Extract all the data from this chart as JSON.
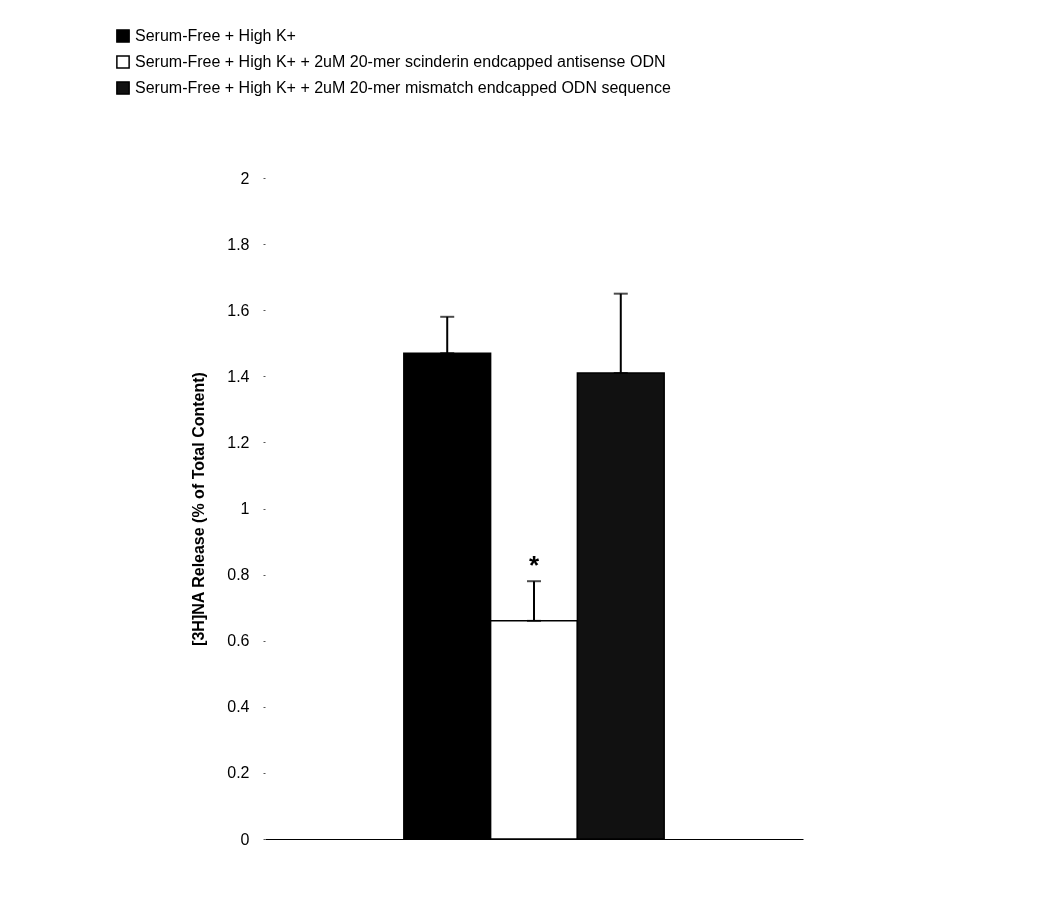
{
  "chart_data": {
    "type": "bar",
    "ylabel": "[3H]NA Release (% of Total Content)",
    "categories": [
      null
    ],
    "series": [
      {
        "name": "Serum-Free + High K+",
        "color": "#000000",
        "values": [
          1.47
        ],
        "errors": [
          0.11
        ]
      },
      {
        "name": "Serum-Free + High K+ + 2uM 20-mer scinderin endcapped antisense ODN",
        "color": "#ffffff",
        "values": [
          0.66
        ],
        "errors": [
          0.12
        ]
      },
      {
        "name": "Serum-Free + High K+ + 2uM 20-mer mismatch endcapped ODN sequence",
        "color": "#111111",
        "values": [
          1.41
        ],
        "errors": [
          0.24
        ]
      }
    ],
    "ylim": [
      0,
      2
    ],
    "yticks": [
      0,
      0.2,
      0.4,
      0.6,
      0.8,
      1,
      1.2,
      1.4,
      1.6,
      1.8,
      2
    ],
    "annotations": [
      "*"
    ],
    "legend": "top left",
    "grid": false,
    "tick_labels": "y"
  }
}
